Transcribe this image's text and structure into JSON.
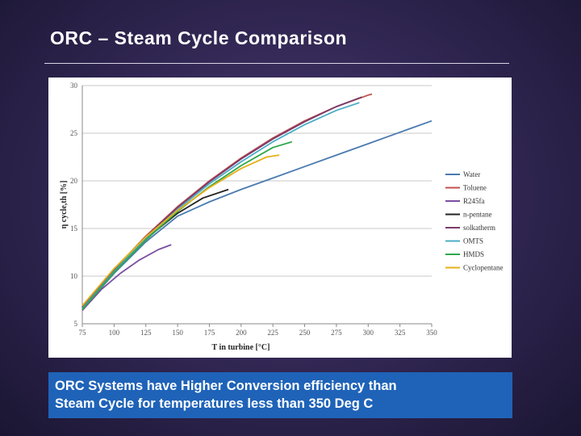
{
  "slide": {
    "title": "ORC – Steam Cycle Comparison",
    "callout_line1": "ORC Systems have Higher Conversion efficiency than",
    "callout_line2": "Steam Cycle for temperatures less than 350 Deg C"
  },
  "chart_data": {
    "type": "line",
    "title": "",
    "xlabel": "T in turbine [°C]",
    "ylabel": "η cycle,th [%]",
    "xlim": [
      75,
      350
    ],
    "ylim": [
      5,
      30
    ],
    "xticks": [
      75,
      100,
      125,
      150,
      175,
      200,
      225,
      250,
      275,
      300,
      325,
      350
    ],
    "yticks": [
      5,
      10,
      15,
      20,
      25,
      30
    ],
    "grid": "horizontal",
    "legend_position": "right",
    "series": [
      {
        "name": "Water",
        "color": "#4a7bb0",
        "points": [
          [
            75,
            6.5
          ],
          [
            100,
            10.3
          ],
          [
            125,
            13.6
          ],
          [
            150,
            16.3
          ],
          [
            175,
            17.8
          ],
          [
            200,
            19.1
          ],
          [
            225,
            20.3
          ],
          [
            250,
            21.5
          ],
          [
            275,
            22.7
          ],
          [
            300,
            23.9
          ],
          [
            325,
            25.1
          ],
          [
            350,
            26.3
          ]
        ]
      },
      {
        "name": "Toluene",
        "color": "#c0504d",
        "points": [
          [
            75,
            6.8
          ],
          [
            100,
            10.7
          ],
          [
            125,
            14.2
          ],
          [
            150,
            17.3
          ],
          [
            175,
            20.0
          ],
          [
            200,
            22.4
          ],
          [
            225,
            24.5
          ],
          [
            250,
            26.3
          ],
          [
            275,
            27.8
          ],
          [
            300,
            29.0
          ],
          [
            303,
            29.1
          ]
        ]
      },
      {
        "name": "R245fa",
        "color": "#7b4fa0",
        "points": [
          [
            75,
            6.4
          ],
          [
            90,
            8.6
          ],
          [
            105,
            10.3
          ],
          [
            120,
            11.7
          ],
          [
            135,
            12.8
          ],
          [
            145,
            13.3
          ]
        ]
      },
      {
        "name": "n-pentane",
        "color": "#222222",
        "points": [
          [
            75,
            6.7
          ],
          [
            100,
            10.5
          ],
          [
            125,
            13.9
          ],
          [
            150,
            16.6
          ],
          [
            170,
            18.2
          ],
          [
            190,
            19.1
          ]
        ]
      },
      {
        "name": "solkatherm",
        "color": "#7a3a6a",
        "points": [
          [
            75,
            6.8
          ],
          [
            100,
            10.7
          ],
          [
            125,
            14.1
          ],
          [
            150,
            17.2
          ],
          [
            175,
            19.9
          ],
          [
            200,
            22.3
          ],
          [
            225,
            24.4
          ],
          [
            250,
            26.2
          ],
          [
            275,
            27.8
          ],
          [
            295,
            28.8
          ]
        ]
      },
      {
        "name": "OMTS",
        "color": "#4bacc6",
        "points": [
          [
            75,
            6.6
          ],
          [
            100,
            10.5
          ],
          [
            125,
            14.0
          ],
          [
            150,
            17.0
          ],
          [
            175,
            19.7
          ],
          [
            200,
            22.0
          ],
          [
            225,
            24.1
          ],
          [
            250,
            25.9
          ],
          [
            275,
            27.4
          ],
          [
            293,
            28.2
          ]
        ]
      },
      {
        "name": "HMDS",
        "color": "#2ea84a",
        "points": [
          [
            75,
            6.5
          ],
          [
            100,
            10.4
          ],
          [
            125,
            13.8
          ],
          [
            150,
            16.8
          ],
          [
            175,
            19.4
          ],
          [
            200,
            21.6
          ],
          [
            225,
            23.5
          ],
          [
            240,
            24.1
          ]
        ]
      },
      {
        "name": "Cyclopentane",
        "color": "#e6b01a",
        "points": [
          [
            75,
            6.9
          ],
          [
            100,
            10.8
          ],
          [
            125,
            14.1
          ],
          [
            150,
            16.9
          ],
          [
            175,
            19.3
          ],
          [
            200,
            21.3
          ],
          [
            220,
            22.5
          ],
          [
            230,
            22.7
          ]
        ]
      }
    ]
  }
}
